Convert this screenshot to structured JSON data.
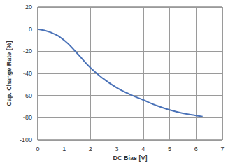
{
  "chart_data": {
    "type": "line",
    "x_label": "DC Bias [V]",
    "y_label": "Cap. Change Rate [%]",
    "x": [
      0,
      0.5,
      1,
      1.5,
      2,
      2.5,
      3,
      3.5,
      4,
      4.5,
      5,
      5.5,
      6,
      6.25
    ],
    "values": [
      0,
      -3,
      -10,
      -22,
      -35,
      -45,
      -53,
      -59,
      -64,
      -69,
      -73,
      -76,
      -78,
      -79
    ],
    "color": "#4a72b8",
    "xlim": [
      0,
      7
    ],
    "xticks": [
      0,
      1,
      2,
      3,
      4,
      5,
      6,
      7
    ],
    "ylim": [
      -100,
      20
    ],
    "yticks": [
      -100,
      -80,
      -60,
      -40,
      -20,
      0,
      20
    ],
    "grid": true
  }
}
